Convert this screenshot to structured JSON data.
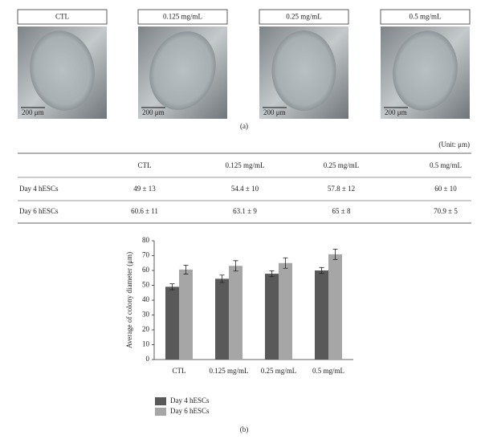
{
  "panel_a": {
    "images": [
      {
        "label": "CTL",
        "scale": "200 μm"
      },
      {
        "label": "0.125 mg/mL",
        "scale": "200 μm"
      },
      {
        "label": "0.25 mg/mL",
        "scale": "200 μm"
      },
      {
        "label": "0.5 mg/mL",
        "scale": "200 μm"
      }
    ],
    "caption": "(a)"
  },
  "table": {
    "unit": "(Unit: μm)",
    "columns": [
      "CTL",
      "0.125 mg/mL",
      "0.25 mg/mL",
      "0.5 mg/mL"
    ],
    "rows": [
      {
        "label": "Day 4 hESCs",
        "cells": [
          "49 ± 13",
          "54.4 ± 10",
          "57.8 ± 12",
          "60 ± 10"
        ]
      },
      {
        "label": "Day 6 hESCs",
        "cells": [
          "60.6 ± 11",
          "63.1 ± 9",
          "65 ± 8",
          "70.9 ± 5"
        ]
      }
    ]
  },
  "chart_data": {
    "type": "bar",
    "ylabel": "Average of colony diameter (μm)",
    "categories": [
      "CTL",
      "0.125 mg/mL",
      "0.25 mg/mL",
      "0.5 mg/mL"
    ],
    "series": [
      {
        "name": "Day 4 hESCs",
        "color": "#595959",
        "values": [
          49,
          54.4,
          57.8,
          60
        ],
        "errors": [
          2,
          2.5,
          2,
          2
        ]
      },
      {
        "name": "Day 6 hESCs",
        "color": "#a6a6a6",
        "values": [
          60.6,
          63.1,
          65,
          70.9
        ],
        "errors": [
          3,
          3.5,
          3.5,
          3.5
        ]
      }
    ],
    "ylim": [
      0,
      80
    ],
    "yticks": [
      0,
      10,
      20,
      30,
      40,
      50,
      60,
      70,
      80
    ],
    "caption": "(b)"
  }
}
